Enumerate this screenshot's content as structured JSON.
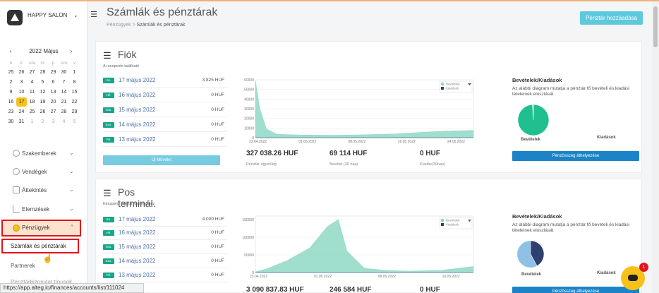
{
  "brand": {
    "name": "HAPPY SALON",
    "caret": "⌄"
  },
  "calendar": {
    "month": "2022 Május",
    "prev": "‹",
    "next": "›",
    "weekdays": [
      "h",
      "k",
      "sze",
      "cs",
      "p",
      "szo",
      "v"
    ],
    "days": [
      {
        "d": "25",
        "m": false
      },
      {
        "d": "26",
        "m": false
      },
      {
        "d": "27",
        "m": false
      },
      {
        "d": "28",
        "m": false
      },
      {
        "d": "29",
        "m": false
      },
      {
        "d": "30",
        "m": false
      },
      {
        "d": "1",
        "m": false
      },
      {
        "d": "2",
        "m": false
      },
      {
        "d": "3",
        "m": false
      },
      {
        "d": "4",
        "m": false
      },
      {
        "d": "5",
        "m": false
      },
      {
        "d": "6",
        "m": false
      },
      {
        "d": "7",
        "m": false
      },
      {
        "d": "8",
        "m": false
      },
      {
        "d": "9",
        "m": false
      },
      {
        "d": "10",
        "m": false
      },
      {
        "d": "11",
        "m": false
      },
      {
        "d": "12",
        "m": false
      },
      {
        "d": "13",
        "m": false
      },
      {
        "d": "14",
        "m": false
      },
      {
        "d": "15",
        "m": false
      },
      {
        "d": "16",
        "m": false
      },
      {
        "d": "17",
        "m": false,
        "today": true
      },
      {
        "d": "18",
        "m": false
      },
      {
        "d": "19",
        "m": false
      },
      {
        "d": "20",
        "m": false
      },
      {
        "d": "21",
        "m": false
      },
      {
        "d": "22",
        "m": false
      },
      {
        "d": "23",
        "m": false
      },
      {
        "d": "24",
        "m": false
      },
      {
        "d": "25",
        "m": false
      },
      {
        "d": "26",
        "m": false
      },
      {
        "d": "27",
        "m": false
      },
      {
        "d": "28",
        "m": false
      },
      {
        "d": "29",
        "m": false
      },
      {
        "d": "30",
        "m": false
      },
      {
        "d": "31",
        "m": false
      },
      {
        "d": "1",
        "m": true
      },
      {
        "d": "2",
        "m": true
      },
      {
        "d": "3",
        "m": true
      },
      {
        "d": "4",
        "m": true
      },
      {
        "d": "5",
        "m": true
      }
    ]
  },
  "nav": {
    "specialists": "Szakemberek",
    "guests": "Vendégek",
    "overview": "Áttekintés",
    "analysis": "Elemzések",
    "finance": "Pénzügyek",
    "caret_down": "⌄",
    "caret_up": "^",
    "sub_accounts": "Számlák és pénztárak",
    "sub_partners": "Partnerek",
    "sub_more": "Pénztárbizonylat típusok"
  },
  "header": {
    "title": "Számlák és pénztárak",
    "crumb_parent": "Pénzügyek",
    "crumb_sep": ">",
    "crumb_current": "Számlák és pénztárak",
    "add_button": "Pénztár hozzáadása"
  },
  "cards": [
    {
      "title": "Fiók",
      "subtitle": "A recepción található",
      "rows": [
        {
          "badge": "Ke.",
          "date": "17 május 2022",
          "amount": "3 825 HUF"
        },
        {
          "badge": "Hé.",
          "date": "16 május 2022",
          "amount": "0 HUF"
        },
        {
          "badge": "Vas.",
          "date": "15 május 2022",
          "amount": "0 HUF"
        },
        {
          "badge": "Szo.",
          "date": "14 május 2022",
          "amount": "0 HUF"
        },
        {
          "badge": "Pé.",
          "date": "13 május 2022",
          "amount": "0 HUF"
        }
      ],
      "op_button": "Új Művelet",
      "stats": [
        {
          "value": "327 038.26 HUF",
          "label": "Pénztár egyenleg"
        },
        {
          "value": "69 114 HUF",
          "label": "Bevétel (30 nap)"
        },
        {
          "value": "0 HUF",
          "label": "Kiadás(30nap)"
        }
      ],
      "right": {
        "title": "Bevételek/Kiadások",
        "desc": "Az alábbi diagram mutatja a pénztár fő bevételi és kiadási tételeinek eloszlását",
        "income_label": "Bevételek",
        "expense_label": "Kiadások",
        "button": "Pénzösszeg áthelyezése"
      }
    },
    {
      "title": "Pos terminál.",
      "subtitle": "Készpénz nélküli fizetésekhez",
      "rows": [
        {
          "badge": "Ke.",
          "date": "17 május 2022",
          "amount": "4 000 HUF"
        },
        {
          "badge": "Hé.",
          "date": "16 május 2022",
          "amount": "0 HUF"
        },
        {
          "badge": "Vas.",
          "date": "15 május 2022",
          "amount": "0 HUF"
        },
        {
          "badge": "Szo.",
          "date": "14 május 2022",
          "amount": "0 HUF"
        },
        {
          "badge": "Pé.",
          "date": "13 május 2022",
          "amount": "0 HUF"
        }
      ],
      "stats": [
        {
          "value": "3 090 837.83 HUF",
          "label": ""
        },
        {
          "value": "246 584 HUF",
          "label": ""
        },
        {
          "value": "0 HUF",
          "label": ""
        }
      ],
      "right": {
        "title": "Bevételek/Kiadások",
        "desc": "Az alábbi diagram mutatja a pénztár fő bevételi és kiadási tételeinek eloszlását",
        "income_label": "Bevételek",
        "expense_label": "Kiadások",
        "button": "Pénzösszeg áthelyezése"
      }
    }
  ],
  "chart_data": [
    {
      "type": "area",
      "legend": [
        "Bevételek",
        "Kiadások"
      ],
      "legend_position": "top-right",
      "x_ticks": [
        "23.04.2022",
        "01.05.2022",
        "08.05.2022",
        "16.05.2022",
        "24.05.2022"
      ],
      "y_ticks": [
        "0",
        "10000",
        "20000",
        "30000",
        "40000",
        "50000",
        "60000"
      ],
      "ylim": [
        0,
        60000
      ],
      "series": [
        {
          "name": "Bevételek",
          "color": "#8fd8c4",
          "x": [
            0,
            0.02,
            0.05,
            0.1,
            0.2,
            0.35,
            0.5,
            0.65,
            0.8,
            0.9,
            1.0
          ],
          "y": [
            59000,
            30000,
            9000,
            3500,
            2800,
            2500,
            3000,
            4000,
            6000,
            7000,
            7500
          ]
        },
        {
          "name": "Kiadások",
          "color": "#2e3f70",
          "x": [
            0,
            1
          ],
          "y": [
            0,
            0
          ]
        }
      ]
    },
    {
      "type": "area",
      "legend": [
        "Bevételek",
        "Kiadások"
      ],
      "legend_position": "top-right",
      "x_ticks": [
        "23.04.2022",
        "01.05.2022",
        "08.05.2022",
        "16.05.2022"
      ],
      "y_ticks": [
        "0",
        "50000",
        "100000",
        "150000"
      ],
      "ylim": [
        0,
        160000
      ],
      "series": [
        {
          "name": "Bevételek",
          "color": "#8fd8c4",
          "x": [
            0,
            0.05,
            0.15,
            0.25,
            0.33,
            0.38,
            0.42,
            0.5,
            0.6,
            0.7,
            0.85,
            1.0
          ],
          "y": [
            2000,
            10000,
            35000,
            70000,
            130000,
            150000,
            60000,
            12000,
            6000,
            4000,
            6000,
            17000
          ]
        },
        {
          "name": "Kiadások",
          "color": "#2e3f70",
          "x": [
            0,
            1
          ],
          "y": [
            0,
            0
          ]
        }
      ]
    }
  ],
  "pies": [
    {
      "income_share": 0.99,
      "expense_share": 0.01,
      "income_color": "#1fbf8f",
      "expense_color": "#f4f4f4"
    },
    {
      "income_share": 0.42,
      "expense_share": 0.58,
      "income_color": "#2e3f70",
      "expense_color": "#8fc0e6"
    }
  ],
  "status_url": "https://app.alteg.io/finances/accounts/list/111024",
  "chat_badge": "1"
}
